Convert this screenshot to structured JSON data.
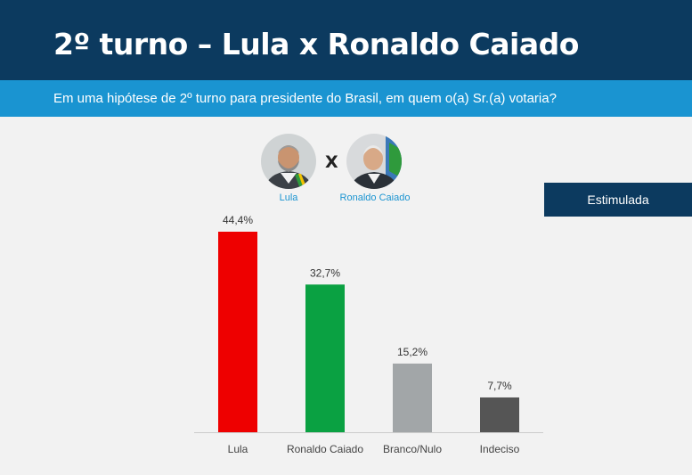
{
  "header": {
    "title": "2º turno – Lula x Ronaldo Caiado",
    "subtitle": "Em uma hipótese de 2º turno para presidente do Brasil, em quem o(a) Sr.(a) votaria?"
  },
  "candidates": {
    "left": {
      "name": "Lula",
      "icon": "lula-portrait-icon"
    },
    "versus": "X",
    "right": {
      "name": "Ronaldo Caiado",
      "icon": "caiado-portrait-icon"
    }
  },
  "badge": "Estimulada",
  "colors": {
    "header": "#0c3a5f",
    "subbar": "#1a94d1",
    "accent_text": "#1a94d1"
  },
  "chart_data": {
    "type": "bar",
    "categories": [
      "Lula",
      "Ronaldo Caiado",
      "Branco/Nulo",
      "Indeciso"
    ],
    "values": [
      44.4,
      32.7,
      15.2,
      7.7
    ],
    "value_labels": [
      "44,4%",
      "32,7%",
      "15,2%",
      "7,7%"
    ],
    "colors": [
      "#ee0000",
      "#0aa142",
      "#a2a6a8",
      "#555555"
    ],
    "ylim": [
      0,
      44.4
    ],
    "grid": false,
    "legend": "none"
  }
}
